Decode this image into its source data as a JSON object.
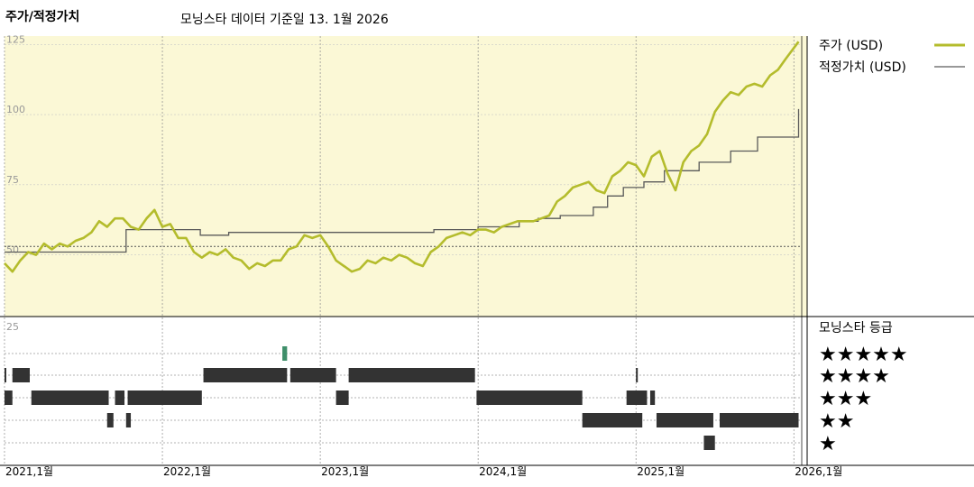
{
  "header": {
    "title": "주가/적정가치",
    "note": "모닝스타 데이터 기준일 13. 1월 2026"
  },
  "colors": {
    "price": "#b4bc2c",
    "fair_value": "#5a5a5a",
    "plot_bg": "#fbf8d6",
    "rating_bar": "#333333",
    "rating_highlight": "#3f8f6a"
  },
  "chart_data": [
    {
      "type": "line",
      "title": "주가/적정가치",
      "ylim": [
        28,
        128
      ],
      "yticks": [
        {
          "v": 125,
          "label": "125"
        },
        {
          "v": 100,
          "label": "100"
        },
        {
          "v": 75,
          "label": "75"
        },
        {
          "v": 50,
          "label": "50"
        }
      ],
      "x_tick_labels": [
        "2021,1월",
        "2022,1월",
        "2023,1월",
        "2024,1월",
        "2025,1월",
        "2026,1월"
      ],
      "xlim": [
        2021.0,
        2026.05
      ],
      "reference_line": 53,
      "legend": [
        {
          "label": "주가 (USD)",
          "series": "price"
        },
        {
          "label": "적정가치 (USD)",
          "series": "fair_value"
        }
      ],
      "series": [
        {
          "name": "주가 (USD)",
          "x": [
            2021.0,
            2021.05,
            2021.1,
            2021.15,
            2021.2,
            2021.25,
            2021.3,
            2021.35,
            2021.4,
            2021.45,
            2021.5,
            2021.55,
            2021.6,
            2021.65,
            2021.7,
            2021.75,
            2021.8,
            2021.85,
            2021.9,
            2021.95,
            2022.0,
            2022.05,
            2022.1,
            2022.15,
            2022.2,
            2022.25,
            2022.3,
            2022.35,
            2022.4,
            2022.45,
            2022.5,
            2022.55,
            2022.6,
            2022.65,
            2022.7,
            2022.75,
            2022.8,
            2022.85,
            2022.9,
            2022.95,
            2023.0,
            2023.05,
            2023.1,
            2023.15,
            2023.2,
            2023.25,
            2023.3,
            2023.35,
            2023.4,
            2023.45,
            2023.5,
            2023.55,
            2023.6,
            2023.65,
            2023.7,
            2023.75,
            2023.8,
            2023.85,
            2023.9,
            2023.95,
            2024.0,
            2024.05,
            2024.1,
            2024.15,
            2024.2,
            2024.25,
            2024.3,
            2024.35,
            2024.4,
            2024.45,
            2024.5,
            2024.55,
            2024.6,
            2024.65,
            2024.7,
            2024.75,
            2024.8,
            2024.85,
            2024.9,
            2024.95,
            2025.0,
            2025.05,
            2025.1,
            2025.15,
            2025.2,
            2025.25,
            2025.3,
            2025.35,
            2025.4,
            2025.45,
            2025.5,
            2025.55,
            2025.6,
            2025.65,
            2025.7,
            2025.75,
            2025.8,
            2025.85,
            2025.9,
            2025.95,
            2026.03
          ],
          "y": [
            47,
            44,
            48,
            51,
            50,
            54,
            52,
            54,
            53,
            55,
            56,
            58,
            62,
            60,
            63,
            63,
            60,
            59,
            63,
            66,
            60,
            61,
            56,
            56,
            51,
            49,
            51,
            50,
            52,
            49,
            48,
            45,
            47,
            46,
            48,
            48,
            52,
            53,
            57,
            56,
            57,
            53,
            48,
            46,
            44,
            45,
            48,
            47,
            49,
            48,
            50,
            49,
            47,
            46,
            51,
            53,
            56,
            57,
            58,
            57,
            59,
            59,
            58,
            60,
            61,
            62,
            62,
            62,
            63,
            64,
            69,
            71,
            74,
            75,
            76,
            73,
            72,
            78,
            80,
            83,
            82,
            78,
            85,
            87,
            79,
            73,
            83,
            87,
            89,
            93,
            101,
            105,
            108,
            107,
            110,
            111,
            110,
            114,
            116,
            120,
            126
          ]
        },
        {
          "name": "적정가치 (USD)",
          "x": [
            2021.0,
            2021.77,
            2021.77,
            2022.24,
            2022.24,
            2022.42,
            2022.42,
            2023.45,
            2023.45,
            2023.72,
            2023.72,
            2024.0,
            2024.0,
            2024.26,
            2024.26,
            2024.38,
            2024.38,
            2024.52,
            2024.52,
            2024.73,
            2024.73,
            2024.82,
            2024.82,
            2024.92,
            2024.92,
            2025.05,
            2025.05,
            2025.18,
            2025.18,
            2025.4,
            2025.4,
            2025.6,
            2025.6,
            2025.77,
            2025.77,
            2026.03,
            2026.03
          ],
          "y": [
            51,
            51,
            59,
            59,
            57,
            57,
            58,
            58,
            58,
            58,
            59,
            59,
            60,
            60,
            62,
            62,
            63,
            63,
            64,
            64,
            67,
            67,
            71,
            71,
            74,
            74,
            76,
            76,
            80,
            80,
            83,
            83,
            87,
            87,
            92,
            92,
            102
          ]
        }
      ]
    },
    {
      "type": "heatmap",
      "title": "모닝스타 등급",
      "ytop_label": "25",
      "rows": [
        "★★★★★",
        "★★★★",
        "★★★",
        "★★",
        "★"
      ],
      "runs": [
        {
          "stars": 5,
          "x0": 2022.76,
          "x1": 2022.79,
          "highlight": true
        },
        {
          "stars": 4,
          "x0": 2021.0,
          "x1": 2021.01
        },
        {
          "stars": 4,
          "x0": 2021.05,
          "x1": 2021.16
        },
        {
          "stars": 4,
          "x0": 2022.26,
          "x1": 2022.79
        },
        {
          "stars": 4,
          "x0": 2022.81,
          "x1": 2023.1
        },
        {
          "stars": 4,
          "x0": 2023.18,
          "x1": 2023.98
        },
        {
          "stars": 4,
          "x0": 2025.0,
          "x1": 2025.01
        },
        {
          "stars": 3,
          "x0": 2021.0,
          "x1": 2021.05
        },
        {
          "stars": 3,
          "x0": 2021.17,
          "x1": 2021.66
        },
        {
          "stars": 3,
          "x0": 2021.7,
          "x1": 2021.76
        },
        {
          "stars": 3,
          "x0": 2021.78,
          "x1": 2022.25
        },
        {
          "stars": 3,
          "x0": 2023.1,
          "x1": 2023.18
        },
        {
          "stars": 3,
          "x0": 2023.99,
          "x1": 2024.66
        },
        {
          "stars": 3,
          "x0": 2024.94,
          "x1": 2025.07
        },
        {
          "stars": 3,
          "x0": 2025.09,
          "x1": 2025.12
        },
        {
          "stars": 2,
          "x0": 2021.65,
          "x1": 2021.69
        },
        {
          "stars": 2,
          "x0": 2021.77,
          "x1": 2021.8
        },
        {
          "stars": 2,
          "x0": 2024.66,
          "x1": 2025.04
        },
        {
          "stars": 2,
          "x0": 2025.13,
          "x1": 2025.49
        },
        {
          "stars": 2,
          "x0": 2025.53,
          "x1": 2026.03
        },
        {
          "stars": 1,
          "x0": 2025.43,
          "x1": 2025.5
        }
      ]
    }
  ]
}
